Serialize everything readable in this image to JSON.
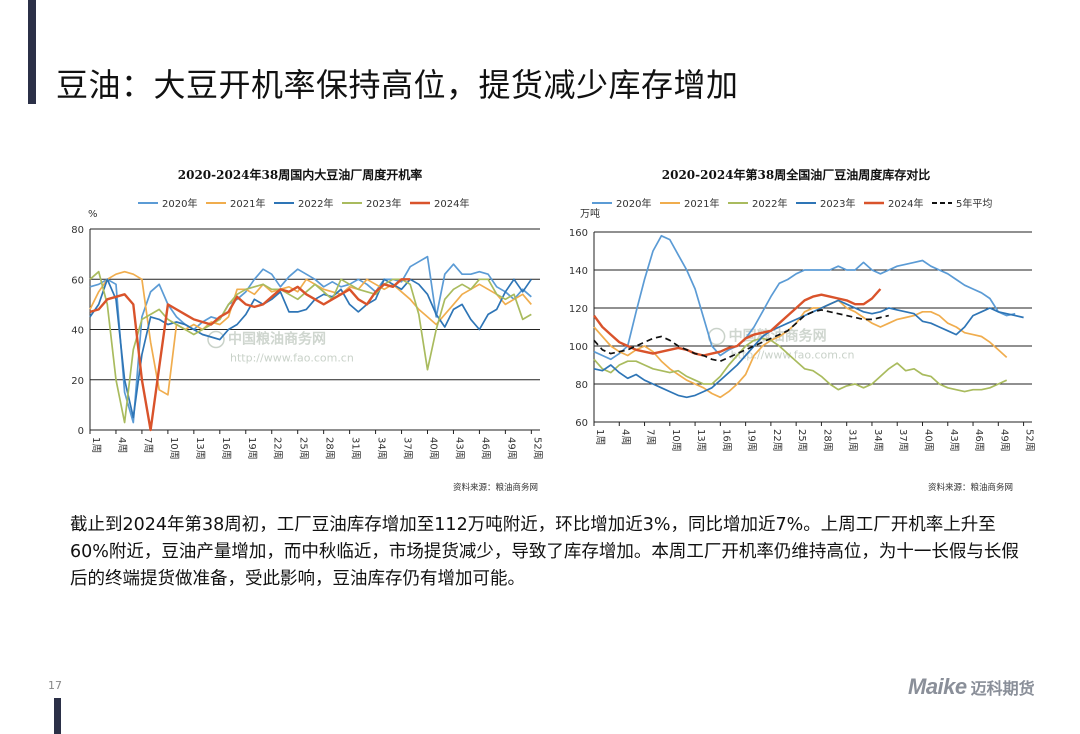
{
  "page": {
    "title": "豆油：大豆开机率保持高位，提货减少库存增加",
    "page_number": "17",
    "body_text": "截止到2024年第38周初，工厂豆油库存增加至112万吨附近，环比增加近3%，同比增加近7%。上周工厂开机率上升至60%附近，豆油产量增加，而中秋临近，市场提货减少，导致了库存增加。本周工厂开机率仍维持高位，为十一长假与长假后的终端提货做准备，受此影响，豆油库存仍有增加可能。",
    "logo": {
      "latin": "Maike",
      "cn": "迈科期货"
    },
    "watermark": {
      "url": "http://www.fao.com.cn",
      "cn": "中国粮油商务网"
    }
  },
  "chart_data": [
    {
      "type": "line",
      "title": "2020-2024年38周国内大豆油厂周度开机率",
      "ylabel": "%",
      "ylim": [
        0,
        80
      ],
      "yticks": [
        0,
        20,
        40,
        60,
        80
      ],
      "xlim": [
        1,
        53
      ],
      "xticks": [
        1,
        4,
        7,
        10,
        13,
        16,
        19,
        22,
        25,
        28,
        31,
        34,
        37,
        40,
        43,
        46,
        49,
        52
      ],
      "xtick_suffix": "周",
      "source": "资料来源：粮油商务网",
      "series": [
        {
          "name": "2020年",
          "color": "#5b9bd5",
          "values": [
            57,
            58,
            60,
            58,
            15,
            3,
            45,
            55,
            58,
            50,
            45,
            42,
            40,
            43,
            45,
            44,
            50,
            52,
            55,
            60,
            64,
            62,
            57,
            61,
            64,
            62,
            60,
            57,
            59,
            57,
            58,
            60,
            58,
            55,
            60,
            60,
            59,
            65,
            67,
            69,
            45,
            62,
            66,
            62,
            62,
            63,
            62,
            57,
            55,
            52,
            56,
            53
          ]
        },
        {
          "name": "2021年",
          "color": "#f0ad4e",
          "values": [
            48,
            55,
            60,
            62,
            63,
            62,
            60,
            35,
            16,
            14,
            42,
            40,
            42,
            40,
            43,
            42,
            45,
            56,
            56,
            54,
            58,
            55,
            56,
            57,
            55,
            60,
            58,
            56,
            55,
            54,
            57,
            56,
            60,
            58,
            56,
            58,
            55,
            52,
            48,
            45,
            42,
            46,
            50,
            54,
            56,
            58,
            56,
            54,
            50,
            52,
            54,
            50
          ]
        },
        {
          "name": "2022年",
          "color": "#2e75b6",
          "values": [
            45,
            50,
            60,
            52,
            20,
            5,
            30,
            45,
            44,
            42,
            43,
            42,
            40,
            38,
            37,
            36,
            40,
            42,
            46,
            52,
            50,
            52,
            55,
            47,
            47,
            48,
            52,
            54,
            53,
            56,
            50,
            47,
            50,
            52,
            60,
            58,
            56,
            60,
            58,
            54,
            46,
            41,
            48,
            50,
            44,
            40,
            46,
            48,
            55,
            60,
            55,
            60
          ]
        },
        {
          "name": "2023年",
          "color": "#a9bb5e",
          "values": [
            60,
            63,
            50,
            20,
            3,
            32,
            44,
            46,
            48,
            44,
            42,
            40,
            38,
            40,
            42,
            44,
            50,
            54,
            56,
            57,
            58,
            56,
            56,
            54,
            52,
            55,
            58,
            55,
            52,
            60,
            58,
            56,
            55,
            54,
            58,
            60,
            60,
            58,
            46,
            24,
            40,
            52,
            56,
            58,
            56,
            60,
            60,
            54,
            52,
            54,
            44,
            46
          ]
        },
        {
          "name": "2024年",
          "color": "#d9532b",
          "values": [
            47,
            48,
            52,
            53,
            54,
            50,
            20,
            0,
            25,
            50,
            48,
            46,
            44,
            43,
            42,
            45,
            47,
            53,
            50,
            49,
            50,
            53,
            56,
            55,
            57,
            54,
            52,
            50,
            52,
            54,
            56,
            52,
            50,
            55,
            58,
            57,
            60,
            60
          ]
        }
      ]
    },
    {
      "type": "line",
      "title": "2020-2024年第38周全国油厂豆油周度库存对比",
      "ylabel": "万吨",
      "ylim": [
        60,
        160
      ],
      "yticks": [
        60,
        80,
        100,
        120,
        140,
        160
      ],
      "xlim": [
        1,
        53
      ],
      "xticks": [
        1,
        4,
        7,
        10,
        13,
        16,
        19,
        22,
        25,
        28,
        31,
        34,
        37,
        40,
        43,
        46,
        49,
        52
      ],
      "xtick_suffix": "周",
      "source": "资料来源：粮油商务网",
      "series": [
        {
          "name": "2020年",
          "color": "#5b9bd5",
          "values": [
            97,
            95,
            93,
            96,
            100,
            118,
            135,
            150,
            158,
            156,
            148,
            140,
            130,
            115,
            100,
            95,
            98,
            100,
            104,
            110,
            118,
            126,
            133,
            135,
            138,
            140,
            140,
            140,
            140,
            142,
            140,
            140,
            144,
            140,
            138,
            140,
            142,
            143,
            144,
            145,
            142,
            140,
            138,
            135,
            132,
            130,
            128,
            125,
            118,
            116,
            117
          ]
        },
        {
          "name": "2021年",
          "color": "#f0ad4e",
          "values": [
            110,
            105,
            100,
            97,
            95,
            98,
            100,
            97,
            92,
            88,
            85,
            82,
            80,
            78,
            75,
            73,
            76,
            80,
            85,
            95,
            100,
            103,
            105,
            108,
            112,
            118,
            120,
            120,
            122,
            124,
            120,
            118,
            115,
            112,
            110,
            112,
            114,
            115,
            116,
            118,
            118,
            116,
            112,
            110,
            107,
            106,
            105,
            102,
            98,
            94
          ]
        },
        {
          "name": "2022年",
          "color": "#a9bb5e",
          "values": [
            93,
            88,
            86,
            90,
            92,
            92,
            90,
            88,
            87,
            86,
            87,
            84,
            82,
            80,
            80,
            84,
            90,
            95,
            100,
            103,
            104,
            103,
            100,
            96,
            92,
            88,
            87,
            84,
            80,
            77,
            79,
            80,
            78,
            80,
            84,
            88,
            91,
            87,
            88,
            85,
            84,
            80,
            78,
            77,
            76,
            77,
            77,
            78,
            80,
            82
          ]
        },
        {
          "name": "2023年",
          "color": "#2e75b6",
          "values": [
            88,
            87,
            90,
            86,
            83,
            85,
            82,
            80,
            78,
            76,
            74,
            73,
            74,
            76,
            78,
            82,
            86,
            90,
            95,
            100,
            105,
            108,
            110,
            112,
            114,
            116,
            118,
            120,
            122,
            124,
            122,
            120,
            118,
            117,
            118,
            120,
            119,
            118,
            117,
            113,
            112,
            110,
            108,
            106,
            110,
            116,
            118,
            120,
            118,
            117,
            116,
            115
          ]
        },
        {
          "name": "2024年",
          "color": "#d9532b",
          "values": [
            116,
            110,
            106,
            102,
            100,
            98,
            97,
            96,
            97,
            98,
            99,
            98,
            96,
            95,
            96,
            97,
            99,
            100,
            104,
            106,
            107,
            108,
            112,
            116,
            120,
            124,
            126,
            127,
            126,
            125,
            124,
            122,
            122,
            125,
            130
          ]
        },
        {
          "name": "5年平均",
          "color": "#111111",
          "dash": true,
          "values": [
            103,
            98,
            96,
            97,
            98,
            100,
            102,
            104,
            105,
            103,
            100,
            98,
            96,
            95,
            93,
            92,
            94,
            96,
            98,
            100,
            102,
            104,
            106,
            108,
            112,
            116,
            118,
            119,
            118,
            117,
            116,
            115,
            114,
            114,
            115,
            116
          ]
        }
      ]
    }
  ]
}
